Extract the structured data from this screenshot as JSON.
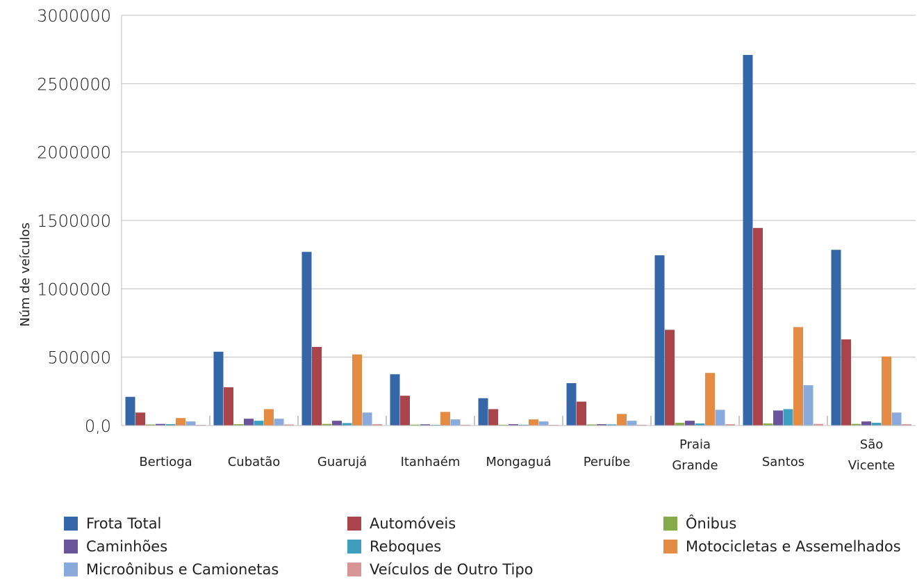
{
  "chart_data": {
    "type": "bar",
    "ylabel": "Núm de veículos",
    "ylim": [
      0,
      3000000
    ],
    "yticks": [
      "0,0",
      "500000",
      "1000000",
      "1500000",
      "2000000",
      "2500000",
      "3000000"
    ],
    "categories": [
      [
        "Bertioga"
      ],
      [
        "Cubatão"
      ],
      [
        "Guarujá"
      ],
      [
        "Itanhaém"
      ],
      [
        "Mongaguá"
      ],
      [
        "Peruíbe"
      ],
      [
        "Praia",
        "Grande"
      ],
      [
        "Santos"
      ],
      [
        "São",
        "Vicente"
      ]
    ],
    "series": [
      {
        "name": "Frota Total",
        "color": "#3466a8",
        "values": [
          210000,
          540000,
          1270000,
          375000,
          200000,
          310000,
          1245000,
          2710000,
          1285000
        ]
      },
      {
        "name": "Automóveis",
        "color": "#a8444a",
        "values": [
          95000,
          280000,
          575000,
          218000,
          120000,
          175000,
          700000,
          1445000,
          630000
        ]
      },
      {
        "name": "Ônibus",
        "color": "#86ab4a",
        "values": [
          8000,
          10000,
          12000,
          7000,
          6000,
          8000,
          20000,
          15000,
          12000
        ]
      },
      {
        "name": "Caminhões",
        "color": "#6a559a",
        "values": [
          12000,
          50000,
          35000,
          9000,
          10000,
          10000,
          35000,
          110000,
          30000
        ]
      },
      {
        "name": "Reboques",
        "color": "#3d9fbd",
        "values": [
          10000,
          35000,
          18000,
          5000,
          6000,
          8000,
          15000,
          120000,
          20000
        ]
      },
      {
        "name": "Motocicletas e Assemelhados",
        "color": "#e58c44",
        "values": [
          55000,
          120000,
          520000,
          100000,
          45000,
          85000,
          385000,
          720000,
          505000
        ]
      },
      {
        "name": "Microônibus e Camionetas",
        "color": "#8aaadb",
        "values": [
          30000,
          50000,
          95000,
          45000,
          30000,
          35000,
          115000,
          295000,
          95000
        ]
      },
      {
        "name": "Veículos de Outro Tipo",
        "color": "#d99596",
        "values": [
          5000,
          8000,
          10000,
          6000,
          5000,
          6000,
          10000,
          12000,
          10000
        ]
      }
    ],
    "grid": true,
    "legend": "bottom"
  }
}
